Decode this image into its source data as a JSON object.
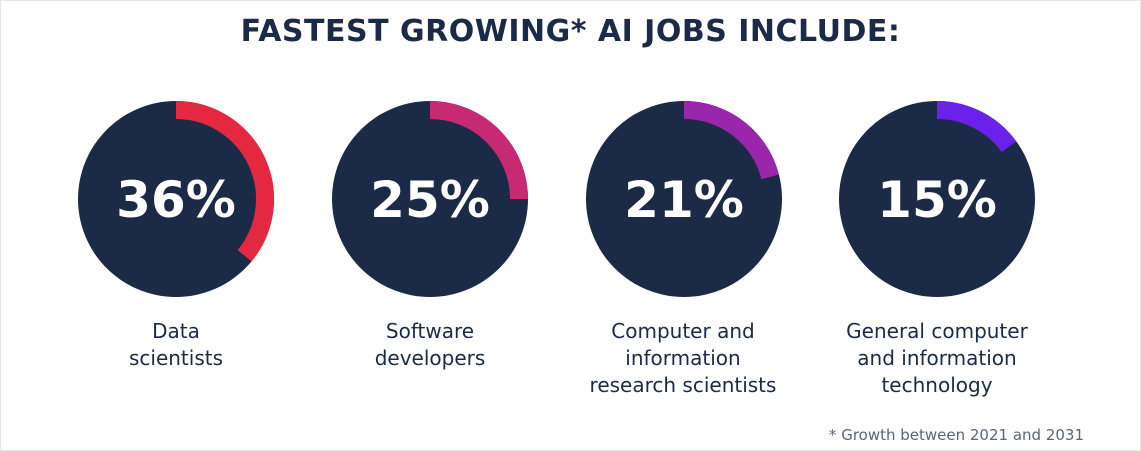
{
  "chart_data": {
    "type": "pie",
    "title": "FASTEST GROWING* AI JOBS INCLUDE:",
    "categories": [
      "Data\nscientists",
      "Software\ndevelopers",
      "Computer and\ninformation\nresearch scientists",
      "General computer\nand information\ntechnology"
    ],
    "values": [
      36,
      25,
      21,
      15
    ],
    "value_labels": [
      "36%",
      "25%",
      "21%",
      "15%"
    ],
    "colors": [
      "#e4283f",
      "#c72a73",
      "#9a26ab",
      "#6a22ea"
    ],
    "circle_color": "#1b2a47",
    "footnote": "*  Growth between 2021 and 2031"
  }
}
